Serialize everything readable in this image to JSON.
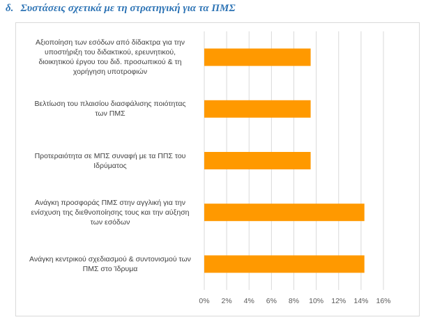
{
  "heading": {
    "label": "δ.",
    "text": "Συστάσεις σχετικά με τη στρατηγική για τα ΠΜΣ"
  },
  "chart_data": {
    "type": "bar",
    "orientation": "horizontal",
    "categories": [
      "Αξιοποίηση των εσόδων από δίδακτρα για την\nυποστήριξη του διδακτικού, ερευνητικού,\nδιοικητικού έργου του διδ. προσωπικού & τη\nχορήγηση υποτροφιών",
      "Βελτίωση του πλαισίου διασφάλισης ποιότητας\nτων ΠΜΣ",
      "Προτεραιότητα σε ΜΠΣ συναφή με τα ΠΠΣ του\nΙδρύματος",
      "Ανάγκη προσφοράς ΠΜΣ στην αγγλική για την\nενίσχυση της διεθνοποίησης τους και την αύξηση\nτων εσόδων",
      "Ανάγκη κεντρικού σχεδιασμού & συντονισμού των\nΠΜΣ στο Ίδρυμα"
    ],
    "values": [
      9.5,
      9.5,
      9.5,
      14.3,
      14.3
    ],
    "unit": "%",
    "xlim": [
      0,
      16
    ],
    "xticks": [
      "0%",
      "2%",
      "4%",
      "6%",
      "8%",
      "10%",
      "12%",
      "14%",
      "16%"
    ],
    "bar_color": "#ff9900",
    "grid": true,
    "legend": "none"
  }
}
